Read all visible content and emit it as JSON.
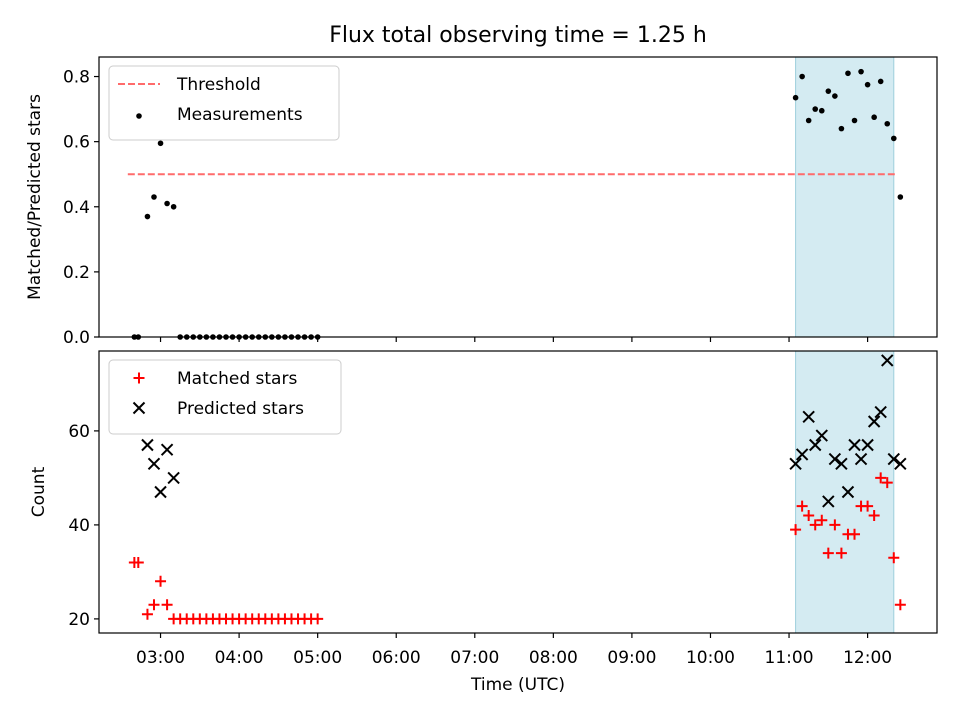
{
  "title": "Flux total observing time = 1.25 h",
  "xlabel": "Time (UTC)",
  "chart_data": [
    {
      "type": "scatter",
      "panel": "top",
      "ylabel": "Matched/Predicted stars",
      "xlim": [
        "02:13",
        "12:53"
      ],
      "ylim": [
        0,
        0.86
      ],
      "yticks": [
        0.0,
        0.2,
        0.4,
        0.6,
        0.8
      ],
      "ytick_labels": [
        "0.0",
        "0.2",
        "0.4",
        "0.6",
        "0.8"
      ],
      "legend_position": "upper-left",
      "shaded_region": {
        "x": [
          "11:05",
          "12:20"
        ],
        "color": "#add8e6"
      },
      "threshold": {
        "name": "Threshold",
        "y": 0.5,
        "x": [
          "02:35",
          "12:22"
        ],
        "color": "#ff6b6b",
        "style": "dashed"
      },
      "series": [
        {
          "name": "Measurements",
          "marker": "dot",
          "color": "#000000",
          "points": [
            [
              "02:40",
              0.0
            ],
            [
              "02:43",
              0.0
            ],
            [
              "02:50",
              0.37
            ],
            [
              "02:55",
              0.43
            ],
            [
              "03:00",
              0.595
            ],
            [
              "03:05",
              0.41
            ],
            [
              "03:10",
              0.4
            ],
            [
              "03:15",
              0.0
            ],
            [
              "03:20",
              0.0
            ],
            [
              "03:25",
              0.0
            ],
            [
              "03:30",
              0.0
            ],
            [
              "03:35",
              0.0
            ],
            [
              "03:40",
              0.0
            ],
            [
              "03:45",
              0.0
            ],
            [
              "03:50",
              0.0
            ],
            [
              "03:55",
              0.0
            ],
            [
              "04:00",
              0.0
            ],
            [
              "04:05",
              0.0
            ],
            [
              "04:10",
              0.0
            ],
            [
              "04:15",
              0.0
            ],
            [
              "04:20",
              0.0
            ],
            [
              "04:25",
              0.0
            ],
            [
              "04:30",
              0.0
            ],
            [
              "04:35",
              0.0
            ],
            [
              "04:40",
              0.0
            ],
            [
              "04:45",
              0.0
            ],
            [
              "04:50",
              0.0
            ],
            [
              "04:55",
              0.0
            ],
            [
              "05:00",
              0.0
            ],
            [
              "11:05",
              0.735
            ],
            [
              "11:10",
              0.8
            ],
            [
              "11:15",
              0.665
            ],
            [
              "11:20",
              0.7
            ],
            [
              "11:25",
              0.695
            ],
            [
              "11:30",
              0.755
            ],
            [
              "11:35",
              0.74
            ],
            [
              "11:40",
              0.64
            ],
            [
              "11:45",
              0.81
            ],
            [
              "11:50",
              0.665
            ],
            [
              "11:55",
              0.815
            ],
            [
              "12:00",
              0.775
            ],
            [
              "12:05",
              0.675
            ],
            [
              "12:10",
              0.785
            ],
            [
              "12:15",
              0.655
            ],
            [
              "12:20",
              0.61
            ],
            [
              "12:25",
              0.43
            ]
          ]
        }
      ]
    },
    {
      "type": "scatter",
      "panel": "bottom",
      "ylabel": "Count",
      "xlim": [
        "02:13",
        "12:53"
      ],
      "ylim": [
        17,
        77
      ],
      "yticks": [
        20,
        40,
        60
      ],
      "ytick_labels": [
        "20",
        "40",
        "60"
      ],
      "legend_position": "upper-left",
      "shaded_region": {
        "x": [
          "11:05",
          "12:20"
        ],
        "color": "#add8e6"
      },
      "series": [
        {
          "name": "Matched stars",
          "marker": "plus",
          "color": "#ff0000",
          "points": [
            [
              "02:40",
              32
            ],
            [
              "02:43",
              32
            ],
            [
              "02:50",
              21
            ],
            [
              "02:55",
              23
            ],
            [
              "03:00",
              28
            ],
            [
              "03:05",
              23
            ],
            [
              "03:10",
              20
            ],
            [
              "03:15",
              20
            ],
            [
              "03:20",
              20
            ],
            [
              "03:25",
              20
            ],
            [
              "03:30",
              20
            ],
            [
              "03:35",
              20
            ],
            [
              "03:40",
              20
            ],
            [
              "03:45",
              20
            ],
            [
              "03:50",
              20
            ],
            [
              "03:55",
              20
            ],
            [
              "04:00",
              20
            ],
            [
              "04:05",
              20
            ],
            [
              "04:10",
              20
            ],
            [
              "04:15",
              20
            ],
            [
              "04:20",
              20
            ],
            [
              "04:25",
              20
            ],
            [
              "04:30",
              20
            ],
            [
              "04:35",
              20
            ],
            [
              "04:40",
              20
            ],
            [
              "04:45",
              20
            ],
            [
              "04:50",
              20
            ],
            [
              "04:55",
              20
            ],
            [
              "05:00",
              20
            ],
            [
              "11:05",
              39
            ],
            [
              "11:10",
              44
            ],
            [
              "11:15",
              42
            ],
            [
              "11:20",
              40
            ],
            [
              "11:25",
              41
            ],
            [
              "11:30",
              34
            ],
            [
              "11:35",
              40
            ],
            [
              "11:40",
              34
            ],
            [
              "11:45",
              38
            ],
            [
              "11:50",
              38
            ],
            [
              "11:55",
              44
            ],
            [
              "12:00",
              44
            ],
            [
              "12:05",
              42
            ],
            [
              "12:10",
              50
            ],
            [
              "12:15",
              49
            ],
            [
              "12:20",
              33
            ],
            [
              "12:25",
              23
            ]
          ]
        },
        {
          "name": "Predicted stars",
          "marker": "x",
          "color": "#000000",
          "points": [
            [
              "02:50",
              57
            ],
            [
              "02:55",
              53
            ],
            [
              "03:00",
              47
            ],
            [
              "03:05",
              56
            ],
            [
              "03:10",
              50
            ],
            [
              "11:05",
              53
            ],
            [
              "11:10",
              55
            ],
            [
              "11:15",
              63
            ],
            [
              "11:20",
              57
            ],
            [
              "11:25",
              59
            ],
            [
              "11:30",
              45
            ],
            [
              "11:35",
              54
            ],
            [
              "11:40",
              53
            ],
            [
              "11:45",
              47
            ],
            [
              "11:50",
              57
            ],
            [
              "11:55",
              54
            ],
            [
              "12:00",
              57
            ],
            [
              "12:05",
              62
            ],
            [
              "12:10",
              64
            ],
            [
              "12:15",
              75
            ],
            [
              "12:20",
              54
            ],
            [
              "12:25",
              53
            ]
          ]
        }
      ]
    }
  ],
  "xticks": [
    "03:00",
    "04:00",
    "05:00",
    "06:00",
    "07:00",
    "08:00",
    "09:00",
    "10:00",
    "11:00",
    "12:00"
  ],
  "xtick_labels": [
    "03:00",
    "04:00",
    "05:00",
    "06:00",
    "07:00",
    "08:00",
    "09:00",
    "10:00",
    "11:00",
    "12:00"
  ]
}
